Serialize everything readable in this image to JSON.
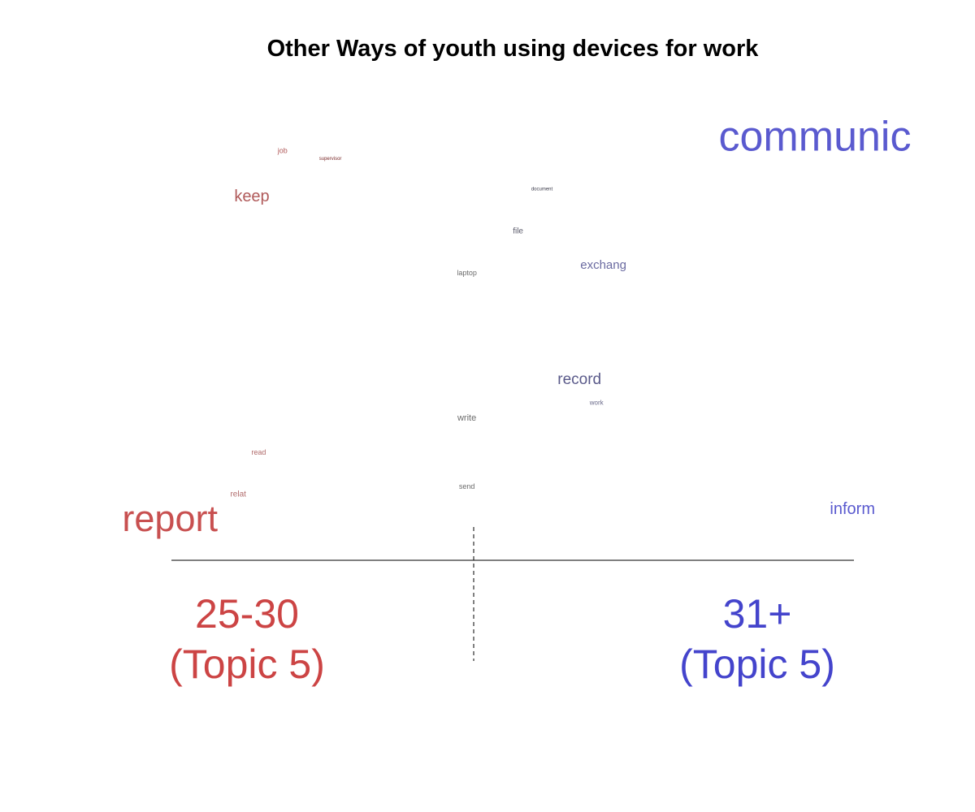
{
  "title": "Other Ways of youth using devices for work",
  "chart_data": {
    "type": "scatter",
    "title": "Other Ways of youth using devices for work",
    "colors": {
      "group_left": "#cc4444",
      "group_right": "#4444cc",
      "axis": "#000000"
    },
    "groups": [
      {
        "name": "25-30",
        "subtitle": "(Topic 5)",
        "color": "#cc4444"
      },
      {
        "name": "31+",
        "subtitle": "(Topic 5)",
        "color": "#4444cc"
      }
    ],
    "words": [
      {
        "text": "communic",
        "x": 1.0,
        "y": 1.0,
        "weight": 52,
        "color": "#5a5acf"
      },
      {
        "text": "job",
        "x": -0.56,
        "y": 0.97,
        "weight": 9,
        "color": "#b05a5a"
      },
      {
        "text": "supervisor",
        "x": -0.42,
        "y": 0.95,
        "weight": 6,
        "color": "#7a2a2a"
      },
      {
        "text": "keep",
        "x": -0.65,
        "y": 0.85,
        "weight": 20,
        "color": "#b05a5a"
      },
      {
        "text": "document",
        "x": 0.2,
        "y": 0.87,
        "weight": 6,
        "color": "#3a3a4a"
      },
      {
        "text": "file",
        "x": 0.13,
        "y": 0.76,
        "weight": 10,
        "color": "#5a5a6a"
      },
      {
        "text": "exchang",
        "x": 0.38,
        "y": 0.67,
        "weight": 15,
        "color": "#6a6aa0"
      },
      {
        "text": "laptop",
        "x": -0.02,
        "y": 0.65,
        "weight": 9,
        "color": "#6a6a6a"
      },
      {
        "text": "record",
        "x": 0.31,
        "y": 0.37,
        "weight": 19,
        "color": "#5a5a8a"
      },
      {
        "text": "work",
        "x": 0.36,
        "y": 0.31,
        "weight": 8,
        "color": "#6a6a8a"
      },
      {
        "text": "write",
        "x": -0.02,
        "y": 0.27,
        "weight": 11,
        "color": "#6a6a6a"
      },
      {
        "text": "read",
        "x": -0.63,
        "y": 0.18,
        "weight": 9,
        "color": "#b06a6a"
      },
      {
        "text": "send",
        "x": -0.02,
        "y": 0.09,
        "weight": 9,
        "color": "#6a6a6a"
      },
      {
        "text": "relat",
        "x": -0.69,
        "y": 0.07,
        "weight": 10,
        "color": "#b06a6a"
      },
      {
        "text": "inform",
        "x": 1.11,
        "y": 0.03,
        "weight": 20,
        "color": "#5a5acf"
      },
      {
        "text": "report",
        "x": -0.89,
        "y": 0.0,
        "weight": 45,
        "color": "#c85050"
      }
    ]
  }
}
